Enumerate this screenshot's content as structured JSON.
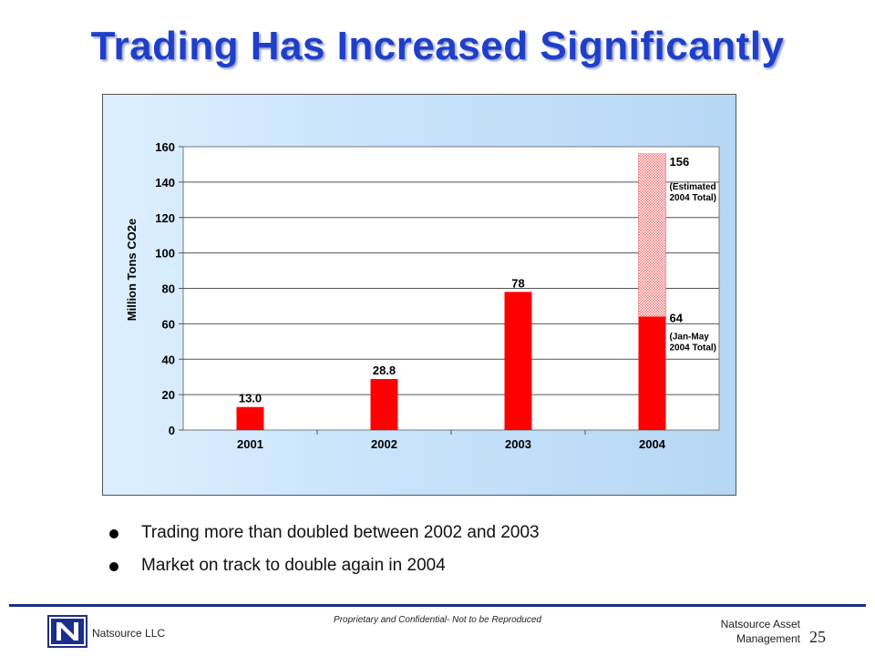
{
  "slide": {
    "title": "Trading Has Increased Significantly",
    "bullets": [
      "Trading more than doubled between 2002 and 2003",
      "Market on track to double again in 2004"
    ]
  },
  "footer": {
    "company": "Natsource LLC",
    "confidential": "Proprietary and Confidential- Not to be Reproduced",
    "right_company_line1": "Natsource Asset",
    "right_company_line2": "Management",
    "page_number": "25"
  },
  "colors": {
    "title": "#1f3fc8",
    "bar": "#ff0000",
    "bar_estimated": "#f4a6a6",
    "chart_background": "#c9e3fb"
  },
  "chart_data": {
    "type": "bar",
    "ylabel": "Million Tons CO2e",
    "xlabel": "",
    "ylim": [
      0,
      160
    ],
    "yticks": [
      0,
      20,
      40,
      60,
      80,
      100,
      120,
      140,
      160
    ],
    "grid": true,
    "categories": [
      "2001",
      "2002",
      "2003",
      "2004"
    ],
    "values": [
      13.0,
      28.8,
      78,
      64
    ],
    "value_labels": [
      "13.0",
      "28.8",
      "78",
      "64"
    ],
    "estimated": {
      "category": "2004",
      "total": 156,
      "label": "156",
      "note_line1": "(Estimated",
      "note_line2": "2004 Total)"
    },
    "actual_note": {
      "category": "2004",
      "note_line1": "(Jan-May",
      "note_line2": "2004 Total)"
    }
  }
}
